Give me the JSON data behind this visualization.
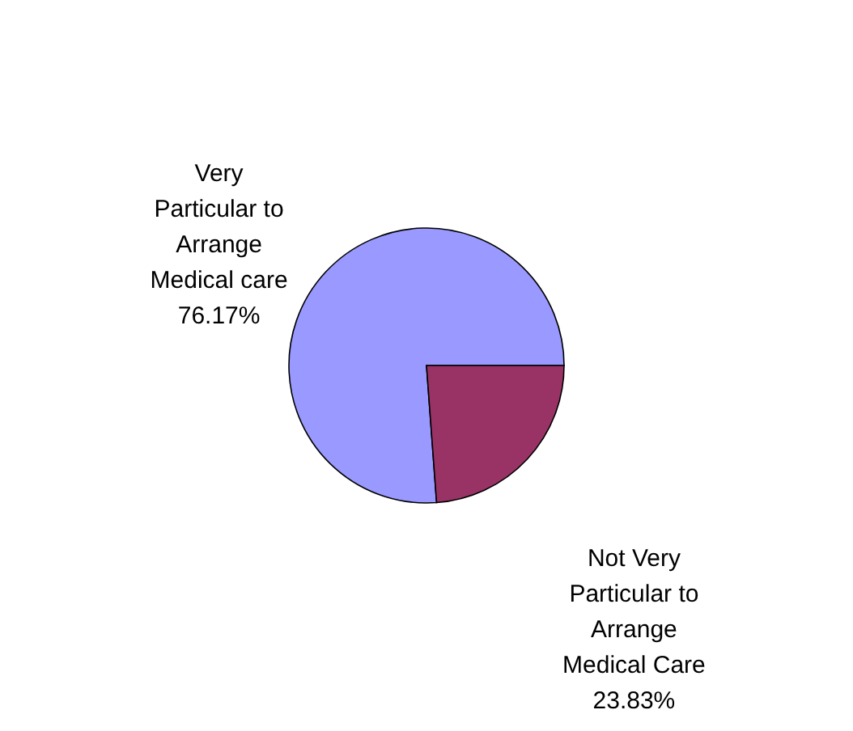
{
  "chart_data": {
    "type": "pie",
    "categories": [
      "Very Particular to Arrange Medical care",
      "Not Very Particular to Arrange Medical Care"
    ],
    "values": [
      76.17,
      23.83
    ],
    "colors": [
      "#9999ff",
      "#993366"
    ],
    "value_labels": [
      "76.17%",
      "23.83%"
    ],
    "legend": false
  }
}
